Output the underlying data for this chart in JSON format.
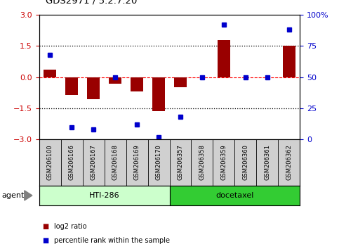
{
  "title": "GDS2971 / 5.2.7.20",
  "samples": [
    "GSM206100",
    "GSM206166",
    "GSM206167",
    "GSM206168",
    "GSM206169",
    "GSM206170",
    "GSM206357",
    "GSM206358",
    "GSM206359",
    "GSM206360",
    "GSM206361",
    "GSM206362"
  ],
  "log2_ratio": [
    0.35,
    -0.85,
    -1.05,
    -0.3,
    -0.7,
    -1.62,
    -0.5,
    0.0,
    1.8,
    0.0,
    0.0,
    1.52
  ],
  "percentile_rank": [
    68,
    10,
    8,
    50,
    12,
    2,
    18,
    50,
    92,
    50,
    50,
    88
  ],
  "bar_color": "#990000",
  "dot_color": "#0000cc",
  "agent_groups": [
    {
      "label": "HTI-286",
      "start": 0,
      "end": 5,
      "color": "#ccffcc"
    },
    {
      "label": "docetaxel",
      "start": 6,
      "end": 11,
      "color": "#33cc33"
    }
  ],
  "ylim_left": [
    -3,
    3
  ],
  "ylim_right": [
    0,
    100
  ],
  "yticks_left": [
    -3,
    -1.5,
    0,
    1.5,
    3
  ],
  "yticks_right": [
    0,
    25,
    50,
    75,
    100
  ],
  "legend_items": [
    {
      "label": "log2 ratio",
      "color": "#990000"
    },
    {
      "label": "percentile rank within the sample",
      "color": "#0000cc"
    }
  ],
  "agent_label": "agent",
  "tick_label_color_left": "#cc0000",
  "tick_label_color_right": "#0000cc"
}
